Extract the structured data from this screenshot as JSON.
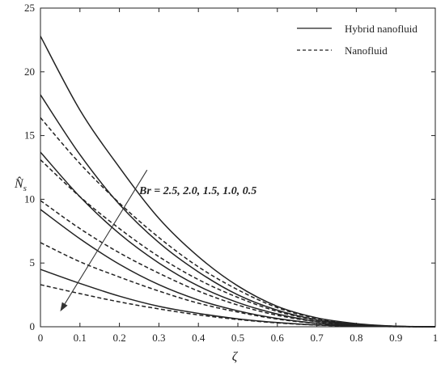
{
  "chart_data": {
    "type": "line",
    "xlabel": "ζ",
    "ylabel_main": "N̂",
    "ylabel_sub": "s",
    "xlim": [
      0,
      1
    ],
    "ylim": [
      0,
      25
    ],
    "xticks": [
      "0",
      "0.1",
      "0.2",
      "0.3",
      "0.4",
      "0.5",
      "0.6",
      "0.7",
      "0.8",
      "0.9",
      "1"
    ],
    "yticks": [
      "0",
      "5",
      "10",
      "15",
      "20",
      "25"
    ],
    "grid": false,
    "legend_position": "top-right",
    "legend": [
      {
        "label": "Hybrid nanofluid",
        "style": "solid"
      },
      {
        "label": "Nanofluid",
        "style": "dashed"
      }
    ],
    "annotation": "Br = 2.5, 2.0, 1.5, 1.0, 0.5",
    "x": [
      0,
      0.1,
      0.2,
      0.3,
      0.4,
      0.5,
      0.6,
      0.7,
      0.8,
      0.9,
      1.0
    ],
    "series": [
      {
        "group": "hybrid",
        "br": "2.5",
        "style": "solid",
        "values": [
          22.8,
          17.0,
          12.5,
          8.5,
          5.5,
          3.2,
          1.6,
          0.7,
          0.25,
          0.05,
          0.0
        ]
      },
      {
        "group": "hybrid",
        "br": "2.0",
        "style": "solid",
        "values": [
          18.2,
          13.5,
          9.6,
          6.6,
          4.3,
          2.5,
          1.3,
          0.55,
          0.2,
          0.04,
          0.0
        ]
      },
      {
        "group": "hybrid",
        "br": "1.5",
        "style": "solid",
        "values": [
          13.7,
          10.2,
          7.3,
          5.0,
          3.2,
          1.9,
          1.0,
          0.42,
          0.15,
          0.03,
          0.0
        ]
      },
      {
        "group": "hybrid",
        "br": "1.0",
        "style": "solid",
        "values": [
          9.2,
          6.9,
          4.9,
          3.3,
          2.1,
          1.25,
          0.65,
          0.28,
          0.1,
          0.02,
          0.0
        ]
      },
      {
        "group": "hybrid",
        "br": "0.5",
        "style": "solid",
        "values": [
          4.5,
          3.4,
          2.4,
          1.6,
          1.05,
          0.62,
          0.33,
          0.14,
          0.05,
          0.01,
          0.0
        ]
      },
      {
        "group": "nano",
        "br": "2.5",
        "style": "dashed",
        "values": [
          16.4,
          12.8,
          9.7,
          7.0,
          4.7,
          2.9,
          1.5,
          0.65,
          0.22,
          0.04,
          0.0
        ]
      },
      {
        "group": "nano",
        "br": "2.0",
        "style": "dashed",
        "values": [
          13.1,
          10.2,
          7.7,
          5.5,
          3.7,
          2.3,
          1.2,
          0.52,
          0.18,
          0.03,
          0.0
        ]
      },
      {
        "group": "nano",
        "br": "1.5",
        "style": "dashed",
        "values": [
          9.9,
          7.7,
          5.8,
          4.2,
          2.8,
          1.7,
          0.9,
          0.39,
          0.13,
          0.025,
          0.0
        ]
      },
      {
        "group": "nano",
        "br": "1.0",
        "style": "dashed",
        "values": [
          6.6,
          5.1,
          3.9,
          2.8,
          1.85,
          1.15,
          0.6,
          0.26,
          0.09,
          0.015,
          0.0
        ]
      },
      {
        "group": "nano",
        "br": "0.5",
        "style": "dashed",
        "values": [
          3.3,
          2.6,
          1.95,
          1.4,
          0.93,
          0.57,
          0.3,
          0.13,
          0.045,
          0.008,
          0.0
        ]
      }
    ],
    "arrow_data": {
      "from": [
        0.27,
        12.3
      ],
      "to": [
        0.05,
        1.2
      ]
    }
  }
}
